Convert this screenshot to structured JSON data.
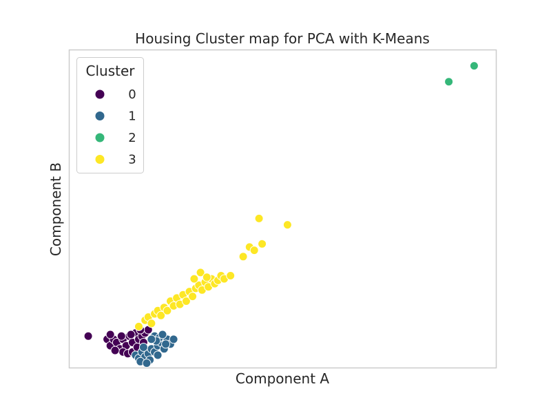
{
  "chart_data": {
    "type": "scatter",
    "title": "Housing Cluster map for PCA with K-Means",
    "xlabel": "Component A",
    "ylabel": "Component B",
    "xlim": [
      -1.5,
      12
    ],
    "ylim": [
      -1.5,
      8.5
    ],
    "grid": false,
    "legend": {
      "title": "Cluster",
      "placement": "top-left",
      "entries": [
        "0",
        "1",
        "2",
        "3"
      ]
    },
    "colors": {
      "0": "#440154",
      "1": "#31688e",
      "2": "#35b779",
      "3": "#fde725"
    },
    "series": [
      {
        "name": "0",
        "points": [
          [
            -0.9,
            -0.5
          ],
          [
            -0.3,
            -0.6
          ],
          [
            -0.2,
            -0.8
          ],
          [
            -0.1,
            -0.6
          ],
          [
            0.0,
            -0.7
          ],
          [
            0.1,
            -0.9
          ],
          [
            0.2,
            -0.6
          ],
          [
            0.3,
            -0.8
          ],
          [
            0.4,
            -0.5
          ],
          [
            0.5,
            -0.7
          ],
          [
            0.6,
            -0.4
          ],
          [
            0.7,
            -0.6
          ],
          [
            0.8,
            -0.5
          ],
          [
            0.9,
            -0.4
          ],
          [
            1.0,
            -0.3
          ],
          [
            0.2,
            -1.0
          ],
          [
            0.35,
            -1.05
          ],
          [
            0.5,
            -1.0
          ],
          [
            -0.05,
            -0.95
          ],
          [
            0.65,
            -0.85
          ],
          [
            0.15,
            -0.5
          ],
          [
            0.45,
            -0.45
          ],
          [
            0.85,
            -0.7
          ],
          [
            0.75,
            -0.3
          ],
          [
            -0.2,
            -0.45
          ]
        ]
      },
      {
        "name": "1",
        "points": [
          [
            0.6,
            -1.1
          ],
          [
            0.7,
            -1.2
          ],
          [
            0.8,
            -1.0
          ],
          [
            0.9,
            -1.15
          ],
          [
            1.0,
            -1.05
          ],
          [
            1.1,
            -0.9
          ],
          [
            1.2,
            -1.0
          ],
          [
            1.3,
            -0.8
          ],
          [
            1.4,
            -0.7
          ],
          [
            1.5,
            -0.9
          ],
          [
            1.6,
            -0.6
          ],
          [
            1.7,
            -0.75
          ],
          [
            1.2,
            -0.5
          ],
          [
            1.35,
            -0.55
          ],
          [
            0.75,
            -1.3
          ],
          [
            1.05,
            -1.25
          ],
          [
            0.95,
            -1.35
          ],
          [
            1.45,
            -0.45
          ],
          [
            1.25,
            -0.65
          ],
          [
            1.55,
            -0.75
          ],
          [
            1.8,
            -0.6
          ],
          [
            1.1,
            -0.6
          ],
          [
            1.3,
            -1.1
          ],
          [
            0.85,
            -0.85
          ]
        ]
      },
      {
        "name": "2",
        "points": [
          [
            10.5,
            7.5
          ],
          [
            11.3,
            8.0
          ]
        ]
      },
      {
        "name": "3",
        "points": [
          [
            0.7,
            -0.2
          ],
          [
            0.9,
            0.0
          ],
          [
            1.0,
            0.1
          ],
          [
            1.1,
            -0.1
          ],
          [
            1.2,
            0.2
          ],
          [
            1.3,
            0.3
          ],
          [
            1.4,
            0.15
          ],
          [
            1.5,
            0.4
          ],
          [
            1.6,
            0.3
          ],
          [
            1.7,
            0.6
          ],
          [
            1.8,
            0.45
          ],
          [
            1.9,
            0.7
          ],
          [
            2.0,
            0.5
          ],
          [
            2.1,
            0.8
          ],
          [
            2.2,
            0.6
          ],
          [
            2.3,
            0.9
          ],
          [
            2.4,
            0.75
          ],
          [
            2.5,
            1.0
          ],
          [
            2.6,
            1.1
          ],
          [
            2.7,
            0.95
          ],
          [
            2.8,
            1.2
          ],
          [
            2.9,
            1.05
          ],
          [
            3.0,
            1.3
          ],
          [
            3.1,
            1.15
          ],
          [
            3.2,
            1.25
          ],
          [
            3.3,
            1.4
          ],
          [
            3.4,
            1.3
          ],
          [
            3.6,
            1.4
          ],
          [
            2.45,
            1.3
          ],
          [
            2.65,
            1.5
          ],
          [
            2.85,
            1.35
          ],
          [
            4.0,
            2.0
          ],
          [
            4.2,
            2.3
          ],
          [
            4.35,
            2.2
          ],
          [
            4.6,
            2.4
          ],
          [
            4.5,
            3.2
          ],
          [
            5.4,
            3.0
          ]
        ]
      }
    ]
  }
}
